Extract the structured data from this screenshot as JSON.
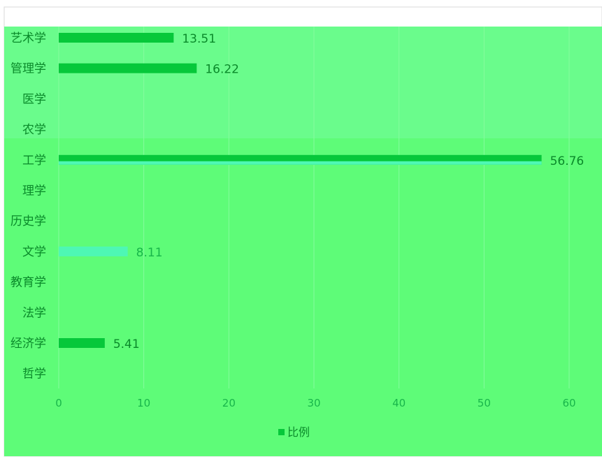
{
  "chart_data": {
    "type": "bar",
    "orientation": "horizontal",
    "categories": [
      "艺术学",
      "管理学",
      "医学",
      "农学",
      "工学",
      "理学",
      "历史学",
      "文学",
      "教育学",
      "法学",
      "经济学",
      "哲学"
    ],
    "series": [
      {
        "name": "比例",
        "values": [
          13.51,
          16.22,
          0,
          0,
          56.76,
          0,
          0,
          8.11,
          0,
          0,
          5.41,
          0
        ],
        "labels": [
          "13.51",
          "16.22",
          "",
          "",
          "56.76",
          "",
          "",
          "8.11",
          "",
          "",
          "5.41",
          ""
        ]
      }
    ],
    "xlim": [
      0,
      60
    ],
    "xticks": [
      "0",
      "10",
      "20",
      "30",
      "40",
      "50",
      "60"
    ],
    "grid": true,
    "legend": "bottom",
    "colors": {
      "plot_background": "#6afc8c",
      "lower_band": "#5efc78",
      "bar": "#06c83a",
      "bar_highlight": "#4ef7b4",
      "gridline": "#86fc9e",
      "text": "#0a8a2a",
      "tick_text": "#18b64a"
    }
  }
}
